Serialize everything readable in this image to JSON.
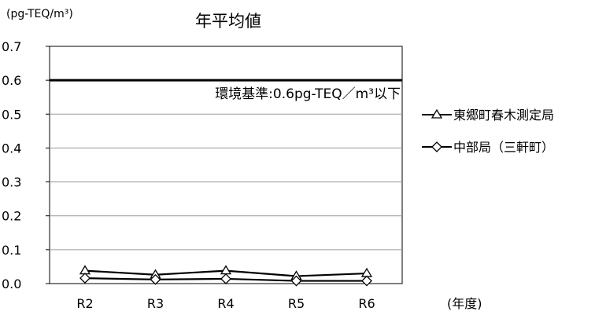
{
  "chart_data": {
    "type": "line",
    "title": "年平均値",
    "ylabel": "(pg-TEQ/m³)",
    "xlabel": "(年度)",
    "categories": [
      "R2",
      "R3",
      "R4",
      "R5",
      "R6"
    ],
    "ylim": [
      0,
      0.7
    ],
    "yticks": [
      "0.0",
      "0.1",
      "0.2",
      "0.3",
      "0.4",
      "0.5",
      "0.6",
      "0.7"
    ],
    "grid": true,
    "legend_position": "right",
    "series": [
      {
        "name": "東郷町春木測定局",
        "marker": "triangle",
        "values": [
          0.038,
          0.026,
          0.038,
          0.022,
          0.03
        ]
      },
      {
        "name": "中部局（三軒町）",
        "marker": "diamond",
        "values": [
          0.016,
          0.012,
          0.014,
          0.008,
          0.008
        ]
      }
    ],
    "reference_line": {
      "value": 0.6,
      "label": "環境基準:0.6pg-TEQ／m³以下"
    }
  }
}
